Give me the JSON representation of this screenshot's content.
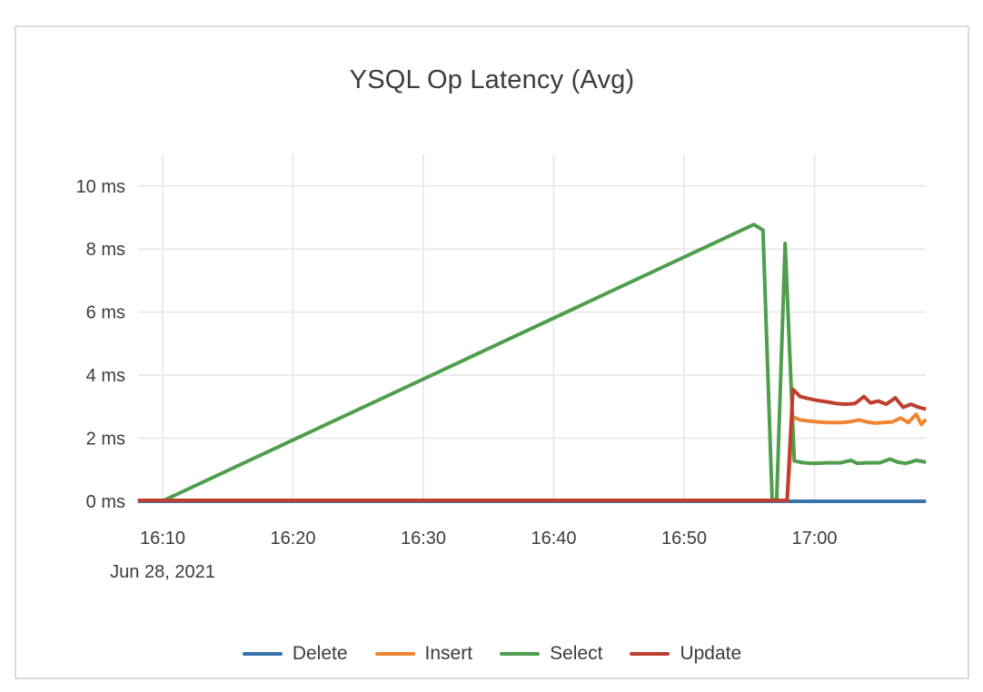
{
  "card": {
    "title": "YSQL Op Latency (Avg)"
  },
  "colors": {
    "delete_blue": "#3973ac",
    "insert_orange": "#ef8533",
    "select_green": "#4f9e4d",
    "update_red": "#bf3f2e",
    "grid": "#ebebeb",
    "axis_text": "#3c3c3c",
    "card_border": "#dadada"
  },
  "chart_data": {
    "type": "line",
    "title": "YSQL Op Latency (Avg)",
    "grid": true,
    "legend_position": "bottom-center",
    "x_unit": "minutes after 16:00 on Jun 28, 2021",
    "x_axis": {
      "tick_labels": [
        "16:10",
        "16:20",
        "16:30",
        "16:40",
        "16:50",
        "17:00"
      ],
      "tick_minutes": [
        10,
        20,
        30,
        40,
        50,
        60
      ],
      "date_label": "Jun 28, 2021",
      "range_minutes": [
        8.1,
        68.6
      ]
    },
    "y_axis": {
      "tick_labels": [
        "0 ms",
        "2 ms",
        "4 ms",
        "6 ms",
        "8 ms",
        "10 ms"
      ],
      "tick_values": [
        0,
        2,
        4,
        6,
        8,
        10
      ],
      "range": [
        0,
        11
      ]
    },
    "series": [
      {
        "name": "Delete",
        "color": "#3973ac",
        "points": [
          [
            8.1,
            0.0
          ],
          [
            68.55,
            0.0
          ]
        ]
      },
      {
        "name": "Insert",
        "color": "#ef8533",
        "points": [
          [
            8.1,
            0.03
          ],
          [
            57.9,
            0.03
          ],
          [
            58.35,
            2.68
          ],
          [
            58.9,
            2.58
          ],
          [
            59.5,
            2.55
          ],
          [
            60.2,
            2.52
          ],
          [
            61,
            2.5
          ],
          [
            62,
            2.5
          ],
          [
            62.7,
            2.52
          ],
          [
            63.4,
            2.58
          ],
          [
            64,
            2.52
          ],
          [
            64.6,
            2.48
          ],
          [
            65.3,
            2.5
          ],
          [
            66,
            2.52
          ],
          [
            66.6,
            2.64
          ],
          [
            67.2,
            2.5
          ],
          [
            67.8,
            2.76
          ],
          [
            68.2,
            2.44
          ],
          [
            68.55,
            2.6
          ]
        ]
      },
      {
        "name": "Select",
        "color": "#4f9e4d",
        "points": [
          [
            10.1,
            0.03
          ],
          [
            55.35,
            8.78
          ],
          [
            56.05,
            8.6
          ],
          [
            56.75,
            0.05
          ],
          [
            57.1,
            0.05
          ],
          [
            57.75,
            8.18
          ],
          [
            58.45,
            1.28
          ],
          [
            59.2,
            1.22
          ],
          [
            60,
            1.2
          ],
          [
            61,
            1.22
          ],
          [
            62,
            1.22
          ],
          [
            62.8,
            1.3
          ],
          [
            63.3,
            1.2
          ],
          [
            64,
            1.22
          ],
          [
            65,
            1.22
          ],
          [
            65.8,
            1.34
          ],
          [
            66.4,
            1.24
          ],
          [
            67,
            1.2
          ],
          [
            67.8,
            1.3
          ],
          [
            68.55,
            1.24
          ]
        ]
      },
      {
        "name": "Update",
        "color": "#bf3f2e",
        "points": [
          [
            8.1,
            0.03
          ],
          [
            57.9,
            0.03
          ],
          [
            58.35,
            3.55
          ],
          [
            58.9,
            3.32
          ],
          [
            59.5,
            3.26
          ],
          [
            60.2,
            3.2
          ],
          [
            61,
            3.15
          ],
          [
            61.7,
            3.1
          ],
          [
            62.4,
            3.08
          ],
          [
            63.1,
            3.1
          ],
          [
            63.8,
            3.32
          ],
          [
            64.3,
            3.12
          ],
          [
            64.9,
            3.18
          ],
          [
            65.5,
            3.08
          ],
          [
            66.2,
            3.28
          ],
          [
            66.8,
            2.98
          ],
          [
            67.4,
            3.08
          ],
          [
            68,
            2.98
          ],
          [
            68.55,
            2.92
          ]
        ]
      }
    ]
  }
}
